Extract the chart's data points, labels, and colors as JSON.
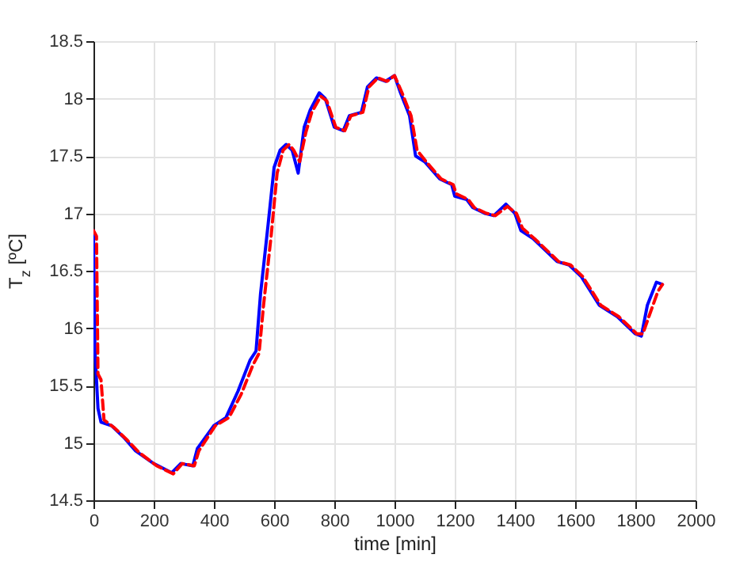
{
  "chart_data": {
    "type": "line",
    "xlabel": "time [min]",
    "ylabel": "T$_{z}$ [ºC]",
    "xlim": [
      0,
      2000
    ],
    "ylim": [
      14.5,
      18.5
    ],
    "xticks": [
      0,
      200,
      400,
      600,
      800,
      1000,
      1200,
      1400,
      1600,
      1800,
      2000
    ],
    "yticks": [
      14.5,
      15,
      15.5,
      16,
      16.5,
      17,
      17.5,
      18,
      18.5
    ],
    "grid": true,
    "legend": false,
    "series": [
      {
        "color": "#0000ff",
        "line_style": "solid",
        "x": [
          0,
          5,
          15,
          25,
          60,
          100,
          140,
          200,
          260,
          290,
          330,
          345,
          400,
          440,
          480,
          520,
          540,
          555,
          580,
          600,
          620,
          640,
          660,
          680,
          700,
          720,
          750,
          770,
          800,
          830,
          850,
          890,
          910,
          940,
          970,
          1000,
          1020,
          1050,
          1070,
          1100,
          1150,
          1190,
          1200,
          1240,
          1260,
          1300,
          1330,
          1370,
          1400,
          1420,
          1460,
          1500,
          1540,
          1580,
          1620,
          1680,
          1740,
          1800,
          1820,
          1840,
          1870,
          1890
        ],
        "values": [
          16.85,
          15.8,
          15.3,
          15.18,
          15.15,
          15.05,
          14.93,
          14.82,
          14.74,
          14.82,
          14.8,
          14.95,
          15.15,
          15.22,
          15.45,
          15.72,
          15.8,
          16.3,
          16.9,
          17.4,
          17.55,
          17.6,
          17.55,
          17.35,
          17.75,
          17.9,
          18.05,
          18.0,
          17.75,
          17.72,
          17.85,
          17.88,
          18.1,
          18.18,
          18.15,
          18.2,
          18.05,
          17.85,
          17.5,
          17.45,
          17.3,
          17.25,
          17.15,
          17.12,
          17.05,
          17.0,
          16.98,
          17.08,
          17.0,
          16.85,
          16.78,
          16.68,
          16.58,
          16.55,
          16.45,
          16.2,
          16.1,
          15.95,
          15.93,
          16.2,
          16.4,
          16.38
        ]
      },
      {
        "color": "#ff0000",
        "line_style": "dashed",
        "x": [
          0,
          10,
          15,
          25,
          35,
          70,
          110,
          150,
          210,
          265,
          295,
          335,
          350,
          405,
          450,
          490,
          530,
          550,
          565,
          590,
          610,
          630,
          650,
          665,
          685,
          705,
          725,
          755,
          775,
          805,
          835,
          855,
          895,
          915,
          945,
          975,
          1000,
          1025,
          1055,
          1075,
          1105,
          1155,
          1195,
          1205,
          1245,
          1265,
          1305,
          1335,
          1375,
          1405,
          1425,
          1465,
          1505,
          1545,
          1585,
          1625,
          1685,
          1745,
          1805,
          1825,
          1845,
          1875,
          1890
        ],
        "values": [
          16.85,
          16.8,
          15.6,
          15.55,
          15.2,
          15.13,
          15.03,
          14.92,
          14.8,
          14.73,
          14.82,
          14.8,
          14.93,
          15.15,
          15.22,
          15.42,
          15.68,
          15.78,
          16.2,
          16.8,
          17.35,
          17.55,
          17.6,
          17.55,
          17.45,
          17.7,
          17.88,
          18.02,
          17.98,
          17.75,
          17.72,
          17.85,
          17.88,
          18.1,
          18.18,
          18.15,
          18.2,
          18.05,
          17.85,
          17.55,
          17.45,
          17.3,
          17.25,
          17.17,
          17.12,
          17.05,
          17.0,
          16.98,
          17.06,
          17.0,
          16.87,
          16.78,
          16.68,
          16.58,
          16.55,
          16.45,
          16.2,
          16.1,
          15.95,
          15.95,
          16.1,
          16.32,
          16.38
        ]
      }
    ]
  }
}
